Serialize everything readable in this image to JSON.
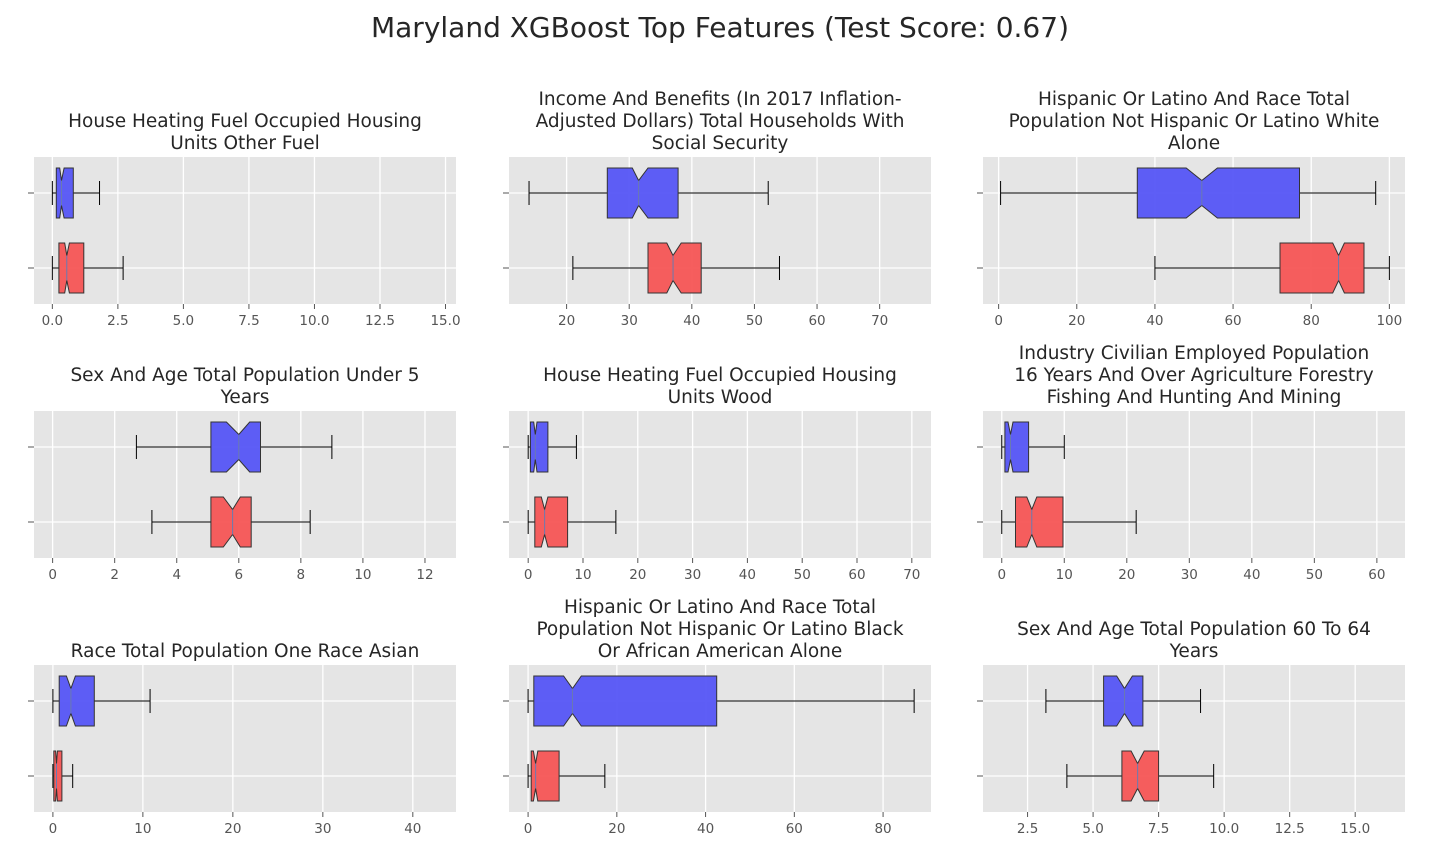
{
  "suptitle": "Maryland XGBoost Top Features (Test Score: 0.67)",
  "colors": {
    "background": "#e5e5e5",
    "grid": "#ffffff",
    "blue_box": "#5555f5",
    "red_box": "#f55555",
    "edge": "#333333",
    "tick_text": "#555555",
    "title_text": "#262626"
  },
  "chart_data": [
    {
      "type": "boxplot",
      "title": "House Heating Fuel Occupied Housing Units Other Fuel",
      "xlim": [
        -0.7,
        15.4
      ],
      "xticks": [
        0,
        2.5,
        5,
        7.5,
        10,
        12.5,
        15
      ],
      "xtick_labels": [
        "0.0",
        "2.5",
        "5.0",
        "7.5",
        "10.0",
        "12.5",
        "15.0"
      ],
      "grid": true,
      "series": [
        {
          "color": "blue",
          "whislo": 0.0,
          "q1": 0.15,
          "med": 0.35,
          "q3": 0.8,
          "whishi": 1.8,
          "notch_lo": 0.28,
          "notch_hi": 0.45
        },
        {
          "color": "red",
          "whislo": 0.0,
          "q1": 0.25,
          "med": 0.55,
          "q3": 1.2,
          "whishi": 2.7,
          "notch_lo": 0.47,
          "notch_hi": 0.65
        }
      ]
    },
    {
      "type": "boxplot",
      "title": "Income And Benefits (In 2017 Inflation-Adjusted Dollars) Total Households With Social Security",
      "xlim": [
        10.8,
        78.2
      ],
      "xticks": [
        20,
        30,
        40,
        50,
        60,
        70
      ],
      "xtick_labels": [
        "20",
        "30",
        "40",
        "50",
        "60",
        "70"
      ],
      "grid": true,
      "series": [
        {
          "color": "blue",
          "whislo": 14.0,
          "q1": 26.5,
          "med": 31.5,
          "q3": 37.8,
          "whishi": 52.2,
          "notch_lo": 30.5,
          "notch_hi": 33.0
        },
        {
          "color": "red",
          "whislo": 21.0,
          "q1": 33.0,
          "med": 37.0,
          "q3": 41.5,
          "whishi": 54.0,
          "notch_lo": 36.0,
          "notch_hi": 38.3
        }
      ]
    },
    {
      "type": "boxplot",
      "title": "Hispanic Or Latino And Race Total Population Not Hispanic Or Latino White Alone",
      "xlim": [
        -4.0,
        104.0
      ],
      "xticks": [
        0,
        20,
        40,
        60,
        80,
        100
      ],
      "xtick_labels": [
        "0",
        "20",
        "40",
        "60",
        "80",
        "100"
      ],
      "grid": true,
      "series": [
        {
          "color": "blue",
          "whislo": 0.5,
          "q1": 35.5,
          "med": 52.0,
          "q3": 77.0,
          "whishi": 96.5,
          "notch_lo": 48.0,
          "notch_hi": 56.0
        },
        {
          "color": "red",
          "whislo": 40.0,
          "q1": 72.0,
          "med": 87.0,
          "q3": 93.5,
          "whishi": 100.0,
          "notch_lo": 85.5,
          "notch_hi": 88.5
        }
      ]
    },
    {
      "type": "boxplot",
      "title": "Sex And Age Total Population Under 5 Years",
      "xlim": [
        -0.6,
        13.0
      ],
      "xticks": [
        0,
        2,
        4,
        6,
        8,
        10,
        12
      ],
      "xtick_labels": [
        "0",
        "2",
        "4",
        "6",
        "8",
        "10",
        "12"
      ],
      "grid": true,
      "series": [
        {
          "color": "blue",
          "whislo": 2.7,
          "q1": 5.1,
          "med": 6.0,
          "q3": 6.7,
          "whishi": 9.0,
          "notch_lo": 5.6,
          "notch_hi": 6.35
        },
        {
          "color": "red",
          "whislo": 3.2,
          "q1": 5.1,
          "med": 5.8,
          "q3": 6.4,
          "whishi": 8.3,
          "notch_lo": 5.5,
          "notch_hi": 6.05
        }
      ]
    },
    {
      "type": "boxplot",
      "title": "House Heating Fuel Occupied Housing Units Wood",
      "xlim": [
        -3.5,
        73.5
      ],
      "xticks": [
        0,
        10,
        20,
        30,
        40,
        50,
        60,
        70
      ],
      "xtick_labels": [
        "0",
        "10",
        "20",
        "30",
        "40",
        "50",
        "60",
        "70"
      ],
      "grid": true,
      "series": [
        {
          "color": "blue",
          "whislo": 0.0,
          "q1": 0.4,
          "med": 1.3,
          "q3": 3.6,
          "whishi": 8.8,
          "notch_lo": 1.0,
          "notch_hi": 1.6
        },
        {
          "color": "red",
          "whislo": 0.0,
          "q1": 1.2,
          "med": 3.0,
          "q3": 7.2,
          "whishi": 16.0,
          "notch_lo": 2.4,
          "notch_hi": 3.6
        }
      ]
    },
    {
      "type": "boxplot",
      "title": "Industry Civilian Employed Population 16 Years And Over Agriculture Forestry Fishing And Hunting And Mining",
      "xlim": [
        -3.0,
        64.5
      ],
      "xticks": [
        0,
        10,
        20,
        30,
        40,
        50,
        60
      ],
      "xtick_labels": [
        "0",
        "10",
        "20",
        "30",
        "40",
        "50",
        "60"
      ],
      "grid": true,
      "series": [
        {
          "color": "blue",
          "whislo": 0.0,
          "q1": 0.5,
          "med": 1.4,
          "q3": 4.3,
          "whishi": 10.0,
          "notch_lo": 1.0,
          "notch_hi": 1.8
        },
        {
          "color": "red",
          "whislo": 0.0,
          "q1": 2.2,
          "med": 4.8,
          "q3": 9.8,
          "whishi": 21.5,
          "notch_lo": 4.0,
          "notch_hi": 5.6
        }
      ]
    },
    {
      "type": "boxplot",
      "title": "Race Total Population One Race Asian",
      "xlim": [
        -2.1,
        44.8
      ],
      "xticks": [
        0,
        10,
        20,
        30,
        40
      ],
      "xtick_labels": [
        "0",
        "10",
        "20",
        "30",
        "40"
      ],
      "grid": true,
      "series": [
        {
          "color": "blue",
          "whislo": 0.0,
          "q1": 0.7,
          "med": 2.0,
          "q3": 4.6,
          "whishi": 10.8,
          "notch_lo": 1.5,
          "notch_hi": 2.5
        },
        {
          "color": "red",
          "whislo": 0.0,
          "q1": 0.1,
          "med": 0.4,
          "q3": 1.0,
          "whishi": 2.2,
          "notch_lo": 0.3,
          "notch_hi": 0.5
        }
      ]
    },
    {
      "type": "boxplot",
      "title": "Hispanic Or Latino And Race Total Population Not Hispanic Or Latino Black Or African American Alone",
      "xlim": [
        -4.3,
        90.8
      ],
      "xticks": [
        0,
        20,
        40,
        60,
        80
      ],
      "xtick_labels": [
        "0",
        "20",
        "40",
        "60",
        "80"
      ],
      "grid": true,
      "series": [
        {
          "color": "blue",
          "whislo": 0.0,
          "q1": 1.3,
          "med": 10.0,
          "q3": 42.5,
          "whishi": 87.0,
          "notch_lo": 8.0,
          "notch_hi": 12.0
        },
        {
          "color": "red",
          "whislo": 0.0,
          "q1": 0.7,
          "med": 1.7,
          "q3": 7.0,
          "whishi": 17.3,
          "notch_lo": 1.2,
          "notch_hi": 2.2
        }
      ]
    },
    {
      "type": "boxplot",
      "title": "Sex And Age Total Population 60 To 64 Years",
      "xlim": [
        0.8,
        16.9
      ],
      "xticks": [
        2.5,
        5,
        7.5,
        10,
        12.5,
        15
      ],
      "xtick_labels": [
        "2.5",
        "5.0",
        "7.5",
        "10.0",
        "12.5",
        "15.0"
      ],
      "grid": true,
      "series": [
        {
          "color": "blue",
          "whislo": 3.2,
          "q1": 5.4,
          "med": 6.2,
          "q3": 6.9,
          "whishi": 9.1,
          "notch_lo": 5.9,
          "notch_hi": 6.5
        },
        {
          "color": "red",
          "whislo": 4.0,
          "q1": 6.1,
          "med": 6.7,
          "q3": 7.5,
          "whishi": 9.6,
          "notch_lo": 6.45,
          "notch_hi": 6.95
        }
      ]
    }
  ]
}
